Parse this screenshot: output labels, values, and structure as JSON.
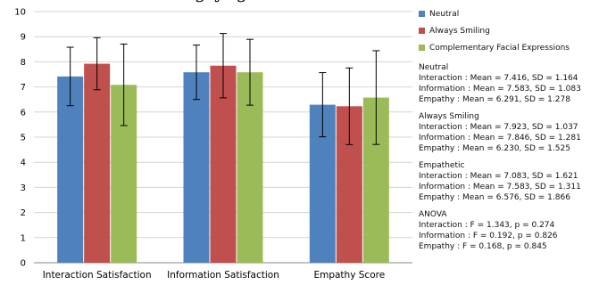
{
  "colors": {
    "neutral": "#4F81BD",
    "always_smiling": "#C0504D",
    "complementary": "#9BBB59"
  },
  "partial_title": "ngryng",
  "chart_data": {
    "type": "bar",
    "title": "",
    "xlabel": "",
    "ylabel": "",
    "ylim": [
      0,
      10
    ],
    "yticks": [
      "0",
      "1",
      "2",
      "3",
      "4",
      "5",
      "6",
      "7",
      "8",
      "9",
      "10"
    ],
    "grid": true,
    "legend_position": "right",
    "categories": [
      "Interaction Satisfaction",
      "Information Satisfaction",
      "Empathy Score"
    ],
    "series": [
      {
        "name": "Neutral",
        "color": "#4F81BD",
        "values": [
          7.416,
          7.583,
          6.291
        ],
        "sd": [
          1.164,
          1.083,
          1.278
        ]
      },
      {
        "name": "Always Smiling",
        "color": "#C0504D",
        "values": [
          7.923,
          7.846,
          6.23
        ],
        "sd": [
          1.037,
          1.281,
          1.525
        ]
      },
      {
        "name": "Complementary Facial Expressions",
        "color": "#9BBB59",
        "values": [
          7.083,
          7.583,
          6.576
        ],
        "sd": [
          1.621,
          1.311,
          1.866
        ]
      }
    ]
  },
  "stats": [
    {
      "heading": "Neutral",
      "lines": [
        "Interaction : Mean = 7.416, SD = 1.164",
        "Information : Mean = 7.583, SD = 1.083",
        "Empathy : Mean = 6.291, SD = 1.278"
      ]
    },
    {
      "heading": "Always Smiling",
      "lines": [
        "Interaction : Mean = 7.923, SD = 1.037",
        "Information : Mean = 7.846, SD = 1.281",
        "Empathy : Mean = 6.230,  SD = 1.525"
      ]
    },
    {
      "heading": "Empathetic",
      "lines": [
        "Interaction : Mean = 7.083, SD = 1.621",
        "Information : Mean = 7.583, SD = 1.311",
        "Empathy : Mean = 6.576, SD = 1.866"
      ]
    },
    {
      "heading": "ANOVA",
      "lines": [
        "Interaction : F = 1.343,  p =  0.274",
        "Information  : F = 0.192, p = 0.826",
        "Empathy : F = 0.168, p = 0.845"
      ]
    }
  ]
}
